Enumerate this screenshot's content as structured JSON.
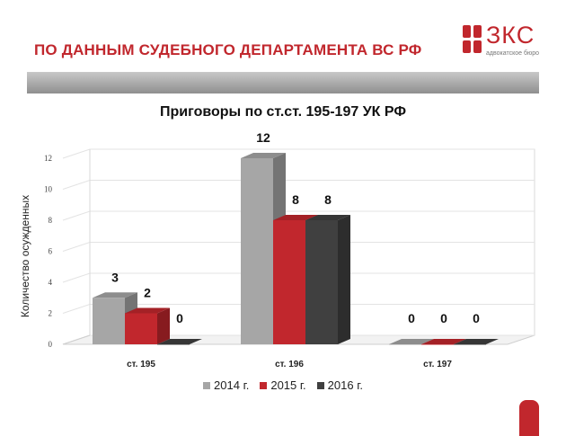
{
  "header": {
    "title": "ПО ДАННЫМ СУДЕБНОГО ДЕПАРТАМЕНТА ВС РФ"
  },
  "logo": {
    "text": "ЗКС",
    "subtitle": "адвокатское бюро"
  },
  "colors": {
    "brand": "#c1272d",
    "series_2014": "#a6a6a6",
    "series_2015": "#c1272d",
    "series_2016": "#404040"
  },
  "chart_data": {
    "type": "bar",
    "title": "Приговоры по ст.ст. 195-197 УК РФ",
    "ylabel": "Количество осужденных",
    "xlabel": "",
    "categories": [
      "ст. 195",
      "ст. 196",
      "ст. 197"
    ],
    "series": [
      {
        "name": "2014 г.",
        "values": [
          3,
          12,
          0
        ]
      },
      {
        "name": "2015 г.",
        "values": [
          2,
          8,
          0
        ]
      },
      {
        "name": "2016 г.",
        "values": [
          0,
          8,
          0
        ]
      }
    ],
    "ylim": [
      0,
      12
    ],
    "yticks": [
      "0",
      "2",
      "4",
      "6",
      "8",
      "10",
      "12"
    ],
    "grid": true,
    "legend_position": "bottom"
  }
}
